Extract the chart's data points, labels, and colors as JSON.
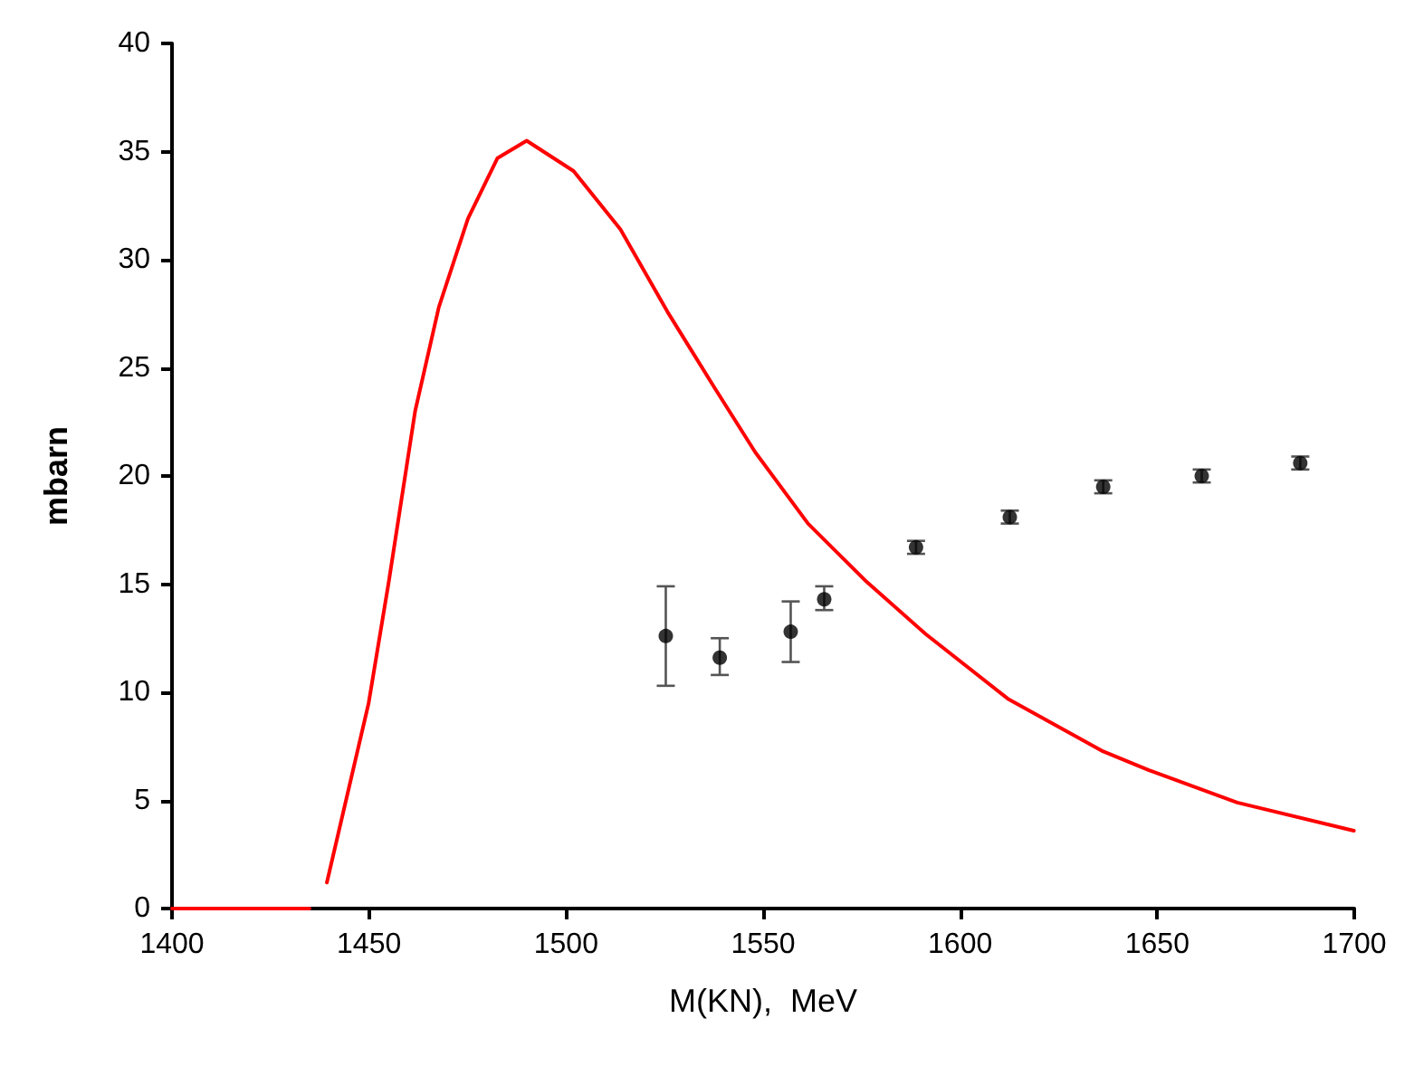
{
  "chart_data": {
    "type": "line",
    "xlabel": "M(KN),  MeV",
    "ylabel": "mbarn",
    "xlim": [
      1400,
      1700
    ],
    "ylim": [
      0,
      40
    ],
    "xticks": [
      1400,
      1450,
      1500,
      1550,
      1600,
      1650,
      1700
    ],
    "yticks": [
      0,
      5,
      10,
      15,
      20,
      25,
      30,
      35,
      40
    ],
    "grid": false,
    "series": [
      {
        "color": "#ff0000",
        "marker": "none",
        "line_style": "solid",
        "x": [
          1400,
          1434.9,
          1437,
          1439.3,
          1449.9,
          1455,
          1461.7,
          1467.7,
          1475.1,
          1482.6,
          1490,
          1501.9,
          1513.8,
          1525.7,
          1537.6,
          1548,
          1561.4,
          1576.3,
          1591.2,
          1612.1,
          1635.9,
          1647.9,
          1670.3,
          1699.9
        ],
        "values": [
          0,
          0,
          null,
          1.2,
          9.5,
          15.1,
          23.0,
          27.8,
          31.9,
          34.7,
          35.5,
          34.1,
          31.4,
          27.6,
          24.1,
          21.1,
          17.8,
          15.1,
          12.7,
          9.7,
          7.3,
          6.4,
          4.9,
          3.6
        ]
      },
      {
        "type": "scatter",
        "color": "#000000",
        "marker": "circle",
        "x": [
          1525.3,
          1539,
          1557,
          1565.5,
          1588.8,
          1612.6,
          1636.3,
          1661.3,
          1686.3
        ],
        "values": [
          12.6,
          11.6,
          12.8,
          14.3,
          16.7,
          18.1,
          19.5,
          20.0,
          20.6
        ],
        "errors": [
          [
            10.3,
            14.9
          ],
          [
            10.8,
            12.5
          ],
          [
            11.4,
            14.2
          ],
          [
            13.8,
            14.9
          ],
          0.3,
          0.3,
          0.3,
          0.3,
          0.3
        ]
      }
    ]
  }
}
